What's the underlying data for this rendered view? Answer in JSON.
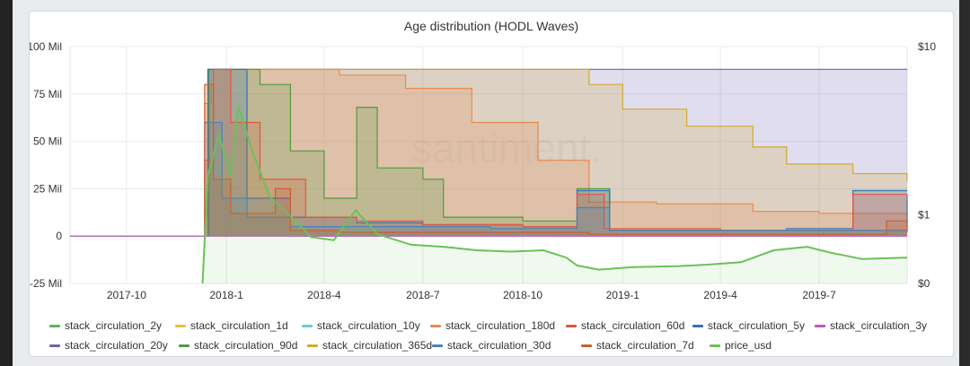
{
  "chart_data": {
    "type": "area",
    "title": "Age distribution (HODL Waves)",
    "watermark": "santiment.",
    "x_tick_labels": [
      "2017-10",
      "2018-1",
      "2018-4",
      "2018-7",
      "2018-10",
      "2019-1",
      "2019-4",
      "2019-7"
    ],
    "x_range": [
      "2017-08-10",
      "2019-09-20"
    ],
    "y_left_ticks": [
      {
        "value": 100000000,
        "label": "100 Mil"
      },
      {
        "value": 75000000,
        "label": "75 Mil"
      },
      {
        "value": 50000000,
        "label": "50 Mil"
      },
      {
        "value": 25000000,
        "label": "25 Mil"
      },
      {
        "value": 0,
        "label": "0"
      },
      {
        "value": -25000000,
        "label": "-25 Mil"
      }
    ],
    "ylim_left": [
      -25000000,
      100000000
    ],
    "y_right_ticks": [
      {
        "value": 10,
        "label": "$10"
      },
      {
        "value": 1,
        "label": "$1"
      },
      {
        "value": 0,
        "label": "$0"
      }
    ],
    "grid": true,
    "legend_position": "bottom",
    "series": [
      {
        "name": "stack_circulation_2y",
        "color": "#5fb35f",
        "axis": "left",
        "points": [
          [
            "2017-08-10",
            0
          ],
          [
            "2019-09-20",
            0
          ]
        ]
      },
      {
        "name": "stack_circulation_1d",
        "color": "#e7c13a",
        "axis": "left",
        "points": [
          [
            "2017-08-10",
            0
          ],
          [
            "2019-09-20",
            0
          ]
        ]
      },
      {
        "name": "stack_circulation_10y",
        "color": "#6bcbd8",
        "axis": "left",
        "points": [
          [
            "2017-08-10",
            0
          ],
          [
            "2019-09-20",
            0
          ]
        ]
      },
      {
        "name": "stack_circulation_180d",
        "color": "#e98a4e",
        "axis": "left",
        "points": [
          [
            "2017-08-10",
            0
          ],
          [
            "2017-12-08",
            0
          ],
          [
            "2017-12-12",
            70000000
          ],
          [
            "2017-12-18",
            88000000
          ],
          [
            "2018-01-15",
            88000000
          ],
          [
            "2018-03-01",
            88000000
          ],
          [
            "2018-04-15",
            85000000
          ],
          [
            "2018-06-15",
            78000000
          ],
          [
            "2018-08-15",
            60000000
          ],
          [
            "2018-10-15",
            40000000
          ],
          [
            "2018-12-01",
            18000000
          ],
          [
            "2019-02-01",
            17000000
          ],
          [
            "2019-05-01",
            13000000
          ],
          [
            "2019-07-01",
            12000000
          ],
          [
            "2019-09-20",
            11000000
          ]
        ]
      },
      {
        "name": "stack_circulation_60d",
        "color": "#e0563f",
        "axis": "left",
        "points": [
          [
            "2017-08-10",
            0
          ],
          [
            "2017-12-08",
            0
          ],
          [
            "2017-12-12",
            40000000
          ],
          [
            "2017-12-20",
            88000000
          ],
          [
            "2018-01-05",
            60000000
          ],
          [
            "2018-02-01",
            30000000
          ],
          [
            "2018-03-15",
            10000000
          ],
          [
            "2018-05-01",
            8000000
          ],
          [
            "2018-07-01",
            6000000
          ],
          [
            "2018-10-01",
            5000000
          ],
          [
            "2018-11-20",
            22000000
          ],
          [
            "2018-12-15",
            4000000
          ],
          [
            "2019-04-01",
            3000000
          ],
          [
            "2019-08-01",
            22000000
          ],
          [
            "2019-09-20",
            5000000
          ]
        ]
      },
      {
        "name": "stack_circulation_5y",
        "color": "#2f72b8",
        "axis": "left",
        "points": [
          [
            "2017-08-10",
            0
          ],
          [
            "2017-12-10",
            0
          ],
          [
            "2017-12-15",
            88000000
          ],
          [
            "2018-01-01",
            88000000
          ],
          [
            "2018-01-20",
            20000000
          ],
          [
            "2018-03-01",
            10000000
          ],
          [
            "2018-05-01",
            7000000
          ],
          [
            "2018-07-01",
            6000000
          ],
          [
            "2018-10-01",
            5000000
          ],
          [
            "2018-11-20",
            24000000
          ],
          [
            "2018-12-20",
            3000000
          ],
          [
            "2019-06-01",
            4000000
          ],
          [
            "2019-08-01",
            24000000
          ],
          [
            "2019-09-20",
            24000000
          ]
        ]
      },
      {
        "name": "stack_circulation_3y",
        "color": "#c452c8",
        "axis": "left",
        "points": [
          [
            "2017-08-10",
            0
          ],
          [
            "2019-09-20",
            0
          ]
        ]
      },
      {
        "name": "stack_circulation_20y",
        "color": "#6f64b0",
        "axis": "left",
        "points": [
          [
            "2017-08-10",
            0
          ],
          [
            "2017-12-12",
            0
          ],
          [
            "2017-12-15",
            88000000
          ],
          [
            "2019-09-20",
            88000000
          ]
        ]
      },
      {
        "name": "stack_circulation_90d",
        "color": "#4f9a3e",
        "axis": "left",
        "points": [
          [
            "2017-08-10",
            0
          ],
          [
            "2017-12-10",
            0
          ],
          [
            "2017-12-16",
            88000000
          ],
          [
            "2018-02-01",
            80000000
          ],
          [
            "2018-03-01",
            45000000
          ],
          [
            "2018-04-01",
            20000000
          ],
          [
            "2018-05-01",
            68000000
          ],
          [
            "2018-05-20",
            36000000
          ],
          [
            "2018-07-01",
            30000000
          ],
          [
            "2018-07-20",
            10000000
          ],
          [
            "2018-10-01",
            8000000
          ],
          [
            "2018-11-20",
            25000000
          ],
          [
            "2018-12-20",
            3000000
          ],
          [
            "2019-09-20",
            3000000
          ]
        ]
      },
      {
        "name": "stack_circulation_365d",
        "color": "#d4a92c",
        "axis": "left",
        "points": [
          [
            "2017-08-10",
            0
          ],
          [
            "2017-12-12",
            0
          ],
          [
            "2017-12-15",
            88000000
          ],
          [
            "2018-11-15",
            88000000
          ],
          [
            "2018-12-01",
            80000000
          ],
          [
            "2019-01-01",
            67000000
          ],
          [
            "2019-03-01",
            58000000
          ],
          [
            "2019-05-01",
            47000000
          ],
          [
            "2019-06-01",
            38000000
          ],
          [
            "2019-08-01",
            33000000
          ],
          [
            "2019-09-20",
            29000000
          ]
        ]
      },
      {
        "name": "stack_circulation_30d",
        "color": "#4a83b7",
        "axis": "left",
        "points": [
          [
            "2017-08-10",
            0
          ],
          [
            "2017-12-08",
            0
          ],
          [
            "2017-12-12",
            60000000
          ],
          [
            "2017-12-28",
            20000000
          ],
          [
            "2018-01-20",
            10000000
          ],
          [
            "2018-03-01",
            5000000
          ],
          [
            "2018-05-01",
            5000000
          ],
          [
            "2018-09-01",
            4000000
          ],
          [
            "2018-11-20",
            15000000
          ],
          [
            "2018-12-20",
            3000000
          ],
          [
            "2019-07-01",
            3000000
          ],
          [
            "2019-09-20",
            20000000
          ]
        ]
      },
      {
        "name": "stack_circulation_7d",
        "color": "#c8602a",
        "axis": "left",
        "points": [
          [
            "2017-08-10",
            0
          ],
          [
            "2017-12-08",
            0
          ],
          [
            "2017-12-12",
            80000000
          ],
          [
            "2017-12-20",
            30000000
          ],
          [
            "2018-01-05",
            12000000
          ],
          [
            "2018-02-15",
            25000000
          ],
          [
            "2018-03-01",
            3000000
          ],
          [
            "2018-04-15",
            2000000
          ],
          [
            "2018-08-01",
            2000000
          ],
          [
            "2018-12-01",
            1000000
          ],
          [
            "2019-09-01",
            8000000
          ],
          [
            "2019-09-20",
            2000000
          ]
        ]
      },
      {
        "name": "price_usd",
        "color": "#6ac158",
        "axis": "right",
        "points": [
          [
            "2017-12-10",
            0
          ],
          [
            "2017-12-15",
            2.0
          ],
          [
            "2017-12-25",
            3.5
          ],
          [
            "2018-01-05",
            2.0
          ],
          [
            "2018-01-12",
            5.0
          ],
          [
            "2018-01-25",
            2.8
          ],
          [
            "2018-02-10",
            1.4
          ],
          [
            "2018-02-28",
            1.0
          ],
          [
            "2018-03-20",
            0.6
          ],
          [
            "2018-04-10",
            0.55
          ],
          [
            "2018-04-30",
            1.1
          ],
          [
            "2018-05-20",
            0.65
          ],
          [
            "2018-06-20",
            0.48
          ],
          [
            "2018-07-20",
            0.45
          ],
          [
            "2018-08-20",
            0.4
          ],
          [
            "2018-09-20",
            0.38
          ],
          [
            "2018-10-20",
            0.4
          ],
          [
            "2018-11-10",
            0.3
          ],
          [
            "2018-11-20",
            0.2
          ],
          [
            "2018-12-10",
            0.15
          ],
          [
            "2019-01-10",
            0.18
          ],
          [
            "2019-02-20",
            0.19
          ],
          [
            "2019-03-20",
            0.21
          ],
          [
            "2019-04-20",
            0.24
          ],
          [
            "2019-05-20",
            0.4
          ],
          [
            "2019-06-20",
            0.45
          ],
          [
            "2019-07-10",
            0.37
          ],
          [
            "2019-08-10",
            0.28
          ],
          [
            "2019-09-20",
            0.3
          ]
        ]
      }
    ]
  },
  "legend": {
    "items": [
      {
        "label": "stack_circulation_2y",
        "color": "#5fb35f",
        "row": 0,
        "slot": 0
      },
      {
        "label": "stack_circulation_1d",
        "color": "#e7c13a",
        "row": 0,
        "slot": 1
      },
      {
        "label": "stack_circulation_10y",
        "color": "#6bcbd8",
        "row": 0,
        "slot": 2
      },
      {
        "label": "stack_circulation_180d",
        "color": "#e98a4e",
        "row": 0,
        "slot": 3
      },
      {
        "label": "stack_circulation_60d",
        "color": "#e0563f",
        "row": 0,
        "slot": 4
      },
      {
        "label": "stack_circulation_5y",
        "color": "#2f72b8",
        "row": 0,
        "slot": 5
      },
      {
        "label": "stack_circulation_3y",
        "color": "#c452c8",
        "row": 0,
        "slot": 6
      },
      {
        "label": "stack_circulation_20y",
        "color": "#6f64b0",
        "row": 1,
        "slot": 0
      },
      {
        "label": "stack_circulation_90d",
        "color": "#4f9a3e",
        "row": 1,
        "slot": 1
      },
      {
        "label": "stack_circulation_365d",
        "color": "#d4a92c",
        "row": 1,
        "slot": 2
      },
      {
        "label": "stack_circulation_30d",
        "color": "#4a83b7",
        "row": 1,
        "slot": 3
      },
      {
        "label": "stack_circulation_7d",
        "color": "#c8602a",
        "row": 1,
        "slot": 4
      },
      {
        "label": "price_usd",
        "color": "#6ac158",
        "row": 1,
        "slot": 5
      }
    ]
  }
}
